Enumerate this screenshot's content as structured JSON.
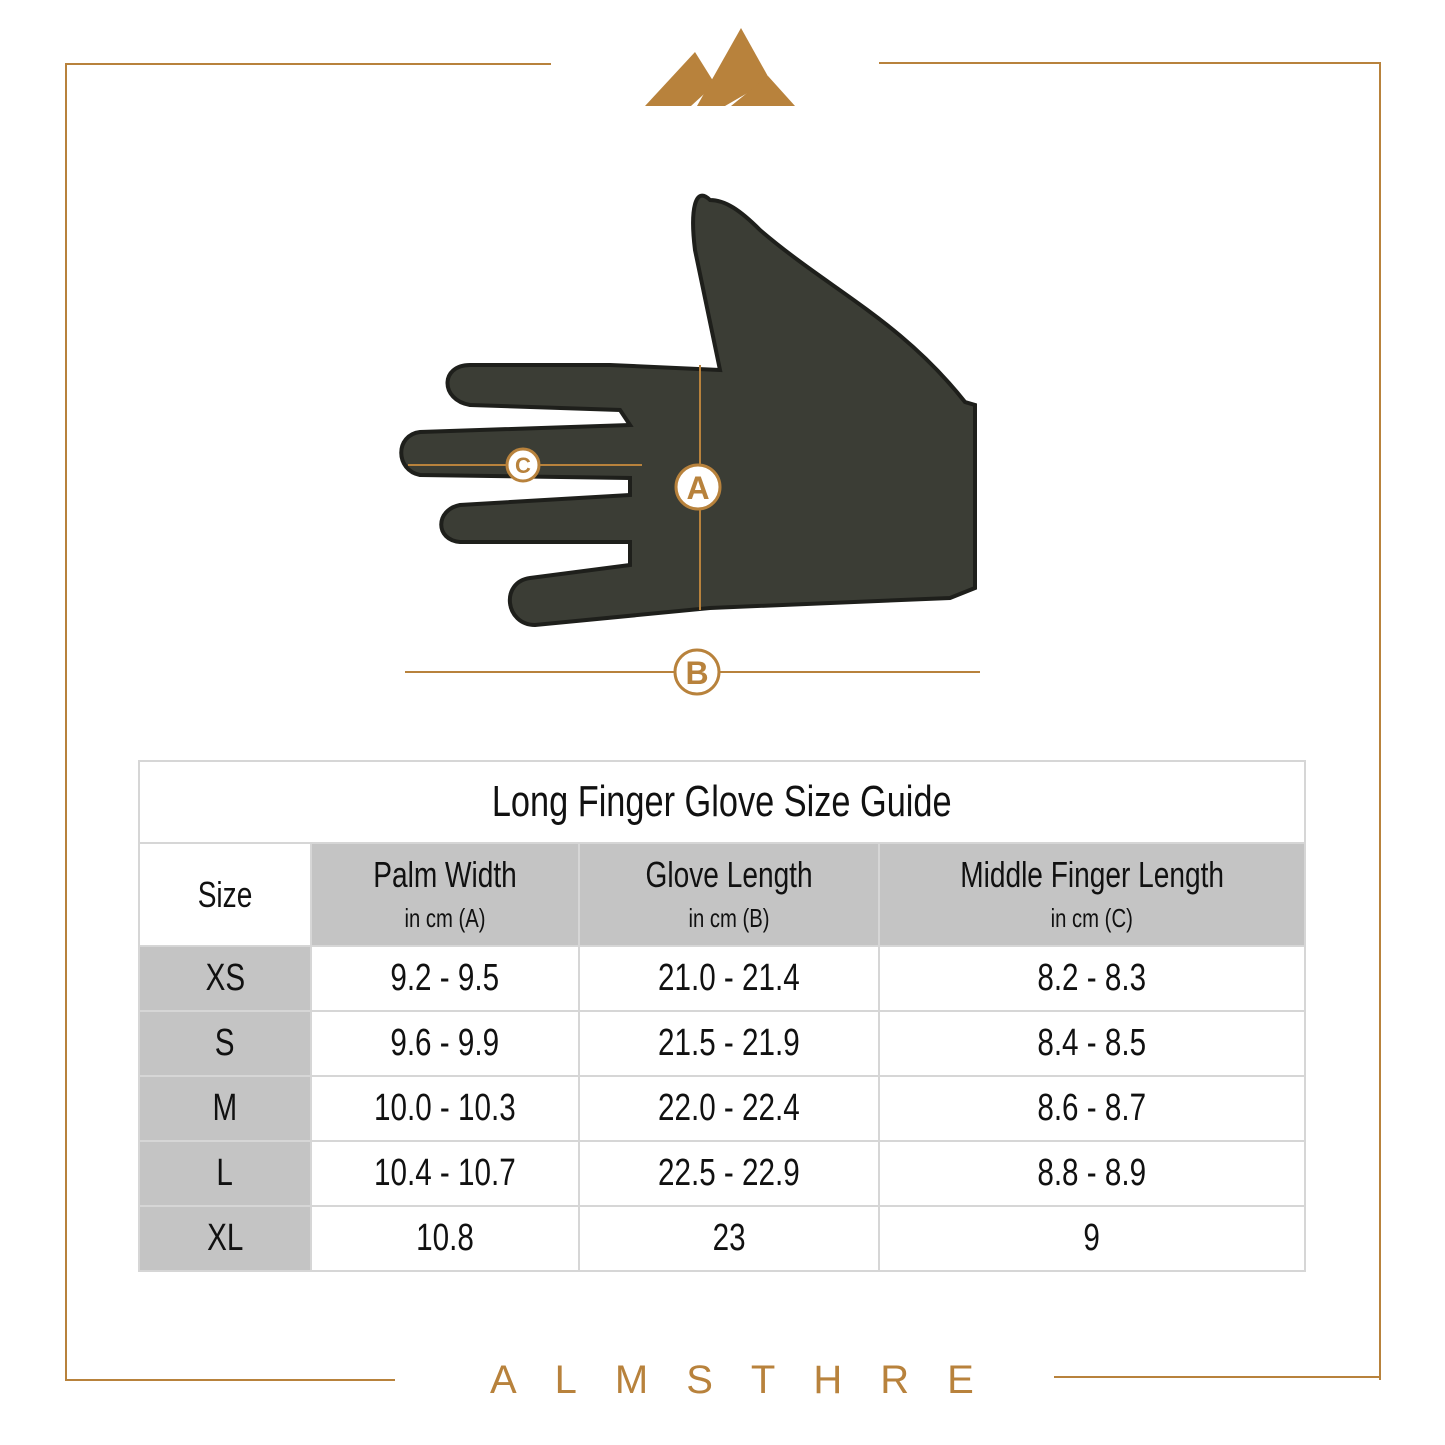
{
  "brand": {
    "name": "ALMSTHRE",
    "accent": "#b8823c"
  },
  "diagram": {
    "labels": {
      "a": "A",
      "b": "B",
      "c": "C"
    }
  },
  "table": {
    "title": "Long Finger Glove Size Guide",
    "headers": [
      {
        "label": "Size",
        "sub": ""
      },
      {
        "label": "Palm Width",
        "sub": "in cm (A)"
      },
      {
        "label": "Glove Length",
        "sub": "in cm (B)"
      },
      {
        "label": "Middle Finger Length",
        "sub": "in cm (C)"
      }
    ],
    "rows": [
      [
        "XS",
        "9.2 - 9.5",
        "21.0 - 21.4",
        "8.2 - 8.3"
      ],
      [
        "S",
        "9.6 - 9.9",
        "21.5 - 21.9",
        "8.4 - 8.5"
      ],
      [
        "M",
        "10.0 - 10.3",
        "22.0 - 22.4",
        "8.6 - 8.7"
      ],
      [
        "L",
        "10.4 - 10.7",
        "22.5 - 22.9",
        "8.8 - 8.9"
      ],
      [
        "XL",
        "10.8",
        "23",
        "9"
      ]
    ]
  }
}
